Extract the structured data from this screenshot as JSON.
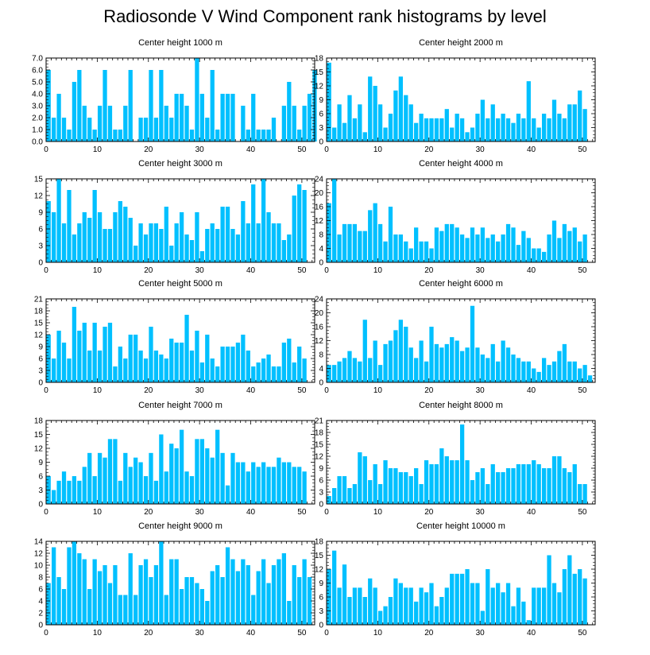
{
  "title": "Radiosonde V Wind Component rank histograms by level",
  "bar_color": "#00c0ff",
  "chart_data": [
    {
      "type": "bar",
      "title": "Center height 1000 m",
      "ylim": [
        0,
        7
      ],
      "yticks": [
        "0.0",
        "1.0",
        "2.0",
        "3.0",
        "4.0",
        "5.0",
        "6.0",
        "7.0"
      ],
      "xticks": [
        "0",
        "10",
        "20",
        "30",
        "40",
        "50"
      ],
      "values": [
        6,
        2,
        4,
        2,
        1,
        5,
        6,
        3,
        2,
        1,
        3,
        6,
        3,
        1,
        1,
        3,
        6,
        0,
        2,
        2,
        6,
        2,
        6,
        3,
        2,
        4,
        4,
        3,
        1,
        7,
        4,
        2,
        6,
        1,
        4,
        4,
        4,
        0,
        3,
        1,
        4,
        1,
        1,
        1,
        2,
        0,
        3,
        5,
        3,
        1,
        3,
        4,
        6
      ]
    },
    {
      "type": "bar",
      "title": "Center height 2000 m",
      "ylim": [
        0,
        18
      ],
      "yticks": [
        "0",
        "3",
        "6",
        "9",
        "12",
        "15",
        "18"
      ],
      "xticks": [
        "0",
        "10",
        "20",
        "30",
        "40",
        "50"
      ],
      "values": [
        17,
        3,
        8,
        4,
        10,
        5,
        8,
        2,
        14,
        12,
        8,
        3,
        6,
        11,
        14,
        10,
        8,
        4,
        6,
        5,
        5,
        5,
        5,
        7,
        3,
        6,
        5,
        2,
        3,
        6,
        9,
        5,
        8,
        5,
        6,
        5,
        4,
        6,
        5,
        13,
        5,
        3,
        6,
        5,
        9,
        6,
        5,
        8,
        8,
        11,
        7
      ]
    },
    {
      "type": "bar",
      "title": "Center height 3000 m",
      "ylim": [
        0,
        15
      ],
      "yticks": [
        "0",
        "3",
        "6",
        "9",
        "12",
        "15"
      ],
      "xticks": [
        "0",
        "10",
        "20",
        "30",
        "40",
        "50"
      ],
      "values": [
        11,
        9,
        15,
        7,
        13,
        5,
        7,
        9,
        8,
        13,
        9,
        6,
        6,
        9,
        11,
        10,
        8,
        3,
        7,
        5,
        7,
        7,
        6,
        10,
        3,
        7,
        9,
        5,
        4,
        9,
        2,
        6,
        7,
        6,
        10,
        10,
        6,
        5,
        11,
        7,
        14,
        7,
        15,
        9,
        7,
        7,
        4,
        5,
        12,
        14,
        13
      ]
    },
    {
      "type": "bar",
      "title": "Center height 4000 m",
      "ylim": [
        0,
        24
      ],
      "yticks": [
        "0",
        "4",
        "8",
        "12",
        "16",
        "20",
        "24"
      ],
      "xticks": [
        "0",
        "10",
        "20",
        "30",
        "40",
        "50"
      ],
      "values": [
        17,
        24,
        8,
        11,
        11,
        11,
        9,
        9,
        15,
        17,
        11,
        6,
        16,
        8,
        8,
        6,
        4,
        10,
        6,
        6,
        4,
        10,
        9,
        11,
        11,
        10,
        8,
        7,
        10,
        8,
        10,
        7,
        8,
        6,
        8,
        11,
        10,
        5,
        9,
        7,
        4,
        4,
        3,
        8,
        12,
        7,
        11,
        9,
        10,
        6,
        8
      ]
    },
    {
      "type": "bar",
      "title": "Center height 5000 m",
      "ylim": [
        0,
        21
      ],
      "yticks": [
        "0",
        "3",
        "6",
        "9",
        "12",
        "15",
        "18",
        "21"
      ],
      "xticks": [
        "0",
        "10",
        "20",
        "30",
        "40",
        "50"
      ],
      "values": [
        12,
        6,
        13,
        10,
        6,
        19,
        13,
        15,
        8,
        15,
        8,
        14,
        15,
        4,
        9,
        6,
        12,
        12,
        8,
        6,
        14,
        8,
        7,
        6,
        11,
        10,
        10,
        17,
        8,
        13,
        5,
        12,
        6,
        4,
        9,
        9,
        9,
        10,
        12,
        8,
        4,
        5,
        6,
        7,
        4,
        4,
        10,
        11,
        5,
        9,
        6
      ]
    },
    {
      "type": "bar",
      "title": "Center height 6000 m",
      "ylim": [
        0,
        24
      ],
      "yticks": [
        "0",
        "4",
        "8",
        "12",
        "16",
        "20",
        "24"
      ],
      "xticks": [
        "0",
        "10",
        "20",
        "30",
        "40",
        "50"
      ],
      "values": [
        5,
        5,
        6,
        7,
        9,
        7,
        6,
        18,
        7,
        12,
        5,
        11,
        12,
        15,
        18,
        16,
        10,
        7,
        12,
        6,
        16,
        11,
        10,
        11,
        13,
        12,
        9,
        10,
        22,
        10,
        8,
        7,
        11,
        6,
        12,
        10,
        8,
        7,
        6,
        6,
        4,
        3,
        7,
        5,
        6,
        9,
        11,
        6,
        6,
        4,
        5,
        2
      ]
    },
    {
      "type": "bar",
      "title": "Center height 7000 m",
      "ylim": [
        0,
        18
      ],
      "yticks": [
        "0",
        "3",
        "6",
        "9",
        "12",
        "15",
        "18"
      ],
      "xticks": [
        "0",
        "10",
        "20",
        "30",
        "40",
        "50"
      ],
      "values": [
        6,
        3,
        5,
        7,
        5,
        6,
        5,
        8,
        11,
        6,
        11,
        10,
        14,
        14,
        5,
        11,
        8,
        10,
        9,
        6,
        11,
        5,
        15,
        7,
        13,
        12,
        16,
        7,
        6,
        14,
        14,
        12,
        10,
        16,
        11,
        4,
        11,
        9,
        9,
        7,
        9,
        8,
        9,
        8,
        8,
        10,
        9,
        9,
        8,
        8,
        7
      ]
    },
    {
      "type": "bar",
      "title": "Center height 8000 m",
      "ylim": [
        0,
        21
      ],
      "yticks": [
        "0",
        "3",
        "6",
        "9",
        "12",
        "15",
        "18",
        "21"
      ],
      "xticks": [
        "0",
        "10",
        "20",
        "30",
        "40",
        "50"
      ],
      "values": [
        2,
        4,
        7,
        7,
        4,
        5,
        13,
        12,
        6,
        10,
        5,
        11,
        9,
        9,
        8,
        8,
        7,
        9,
        5,
        11,
        10,
        10,
        14,
        12,
        11,
        11,
        20,
        11,
        6,
        8,
        9,
        5,
        10,
        8,
        8,
        9,
        9,
        10,
        10,
        10,
        11,
        10,
        9,
        9,
        12,
        12,
        9,
        8,
        10,
        5,
        5
      ]
    },
    {
      "type": "bar",
      "title": "Center height 9000 m",
      "ylim": [
        0,
        14
      ],
      "yticks": [
        "0",
        "2",
        "4",
        "6",
        "8",
        "10",
        "12",
        "14"
      ],
      "xticks": [
        "0",
        "10",
        "20",
        "30",
        "40",
        "50"
      ],
      "values": [
        7,
        13,
        8,
        6,
        13,
        14,
        12,
        11,
        6,
        11,
        9,
        10,
        7,
        10,
        5,
        5,
        12,
        5,
        10,
        11,
        8,
        10,
        14,
        5,
        11,
        11,
        6,
        8,
        8,
        7,
        6,
        4,
        9,
        10,
        8,
        13,
        11,
        9,
        11,
        10,
        5,
        9,
        11,
        7,
        10,
        11,
        12,
        4,
        10,
        8,
        11,
        8
      ]
    },
    {
      "type": "bar",
      "title": "Center height 10000 m",
      "ylim": [
        0,
        18
      ],
      "yticks": [
        "0",
        "3",
        "6",
        "9",
        "12",
        "15",
        "18"
      ],
      "xticks": [
        "0",
        "10",
        "20",
        "30",
        "40",
        "50"
      ],
      "values": [
        12,
        16,
        8,
        13,
        6,
        8,
        8,
        6,
        10,
        8,
        3,
        4,
        6,
        10,
        9,
        8,
        8,
        5,
        8,
        7,
        9,
        4,
        6,
        8,
        11,
        11,
        11,
        12,
        9,
        9,
        3,
        12,
        8,
        9,
        7,
        9,
        4,
        8,
        5,
        1,
        8,
        8,
        8,
        15,
        9,
        7,
        12,
        15,
        11,
        12,
        10
      ]
    }
  ]
}
